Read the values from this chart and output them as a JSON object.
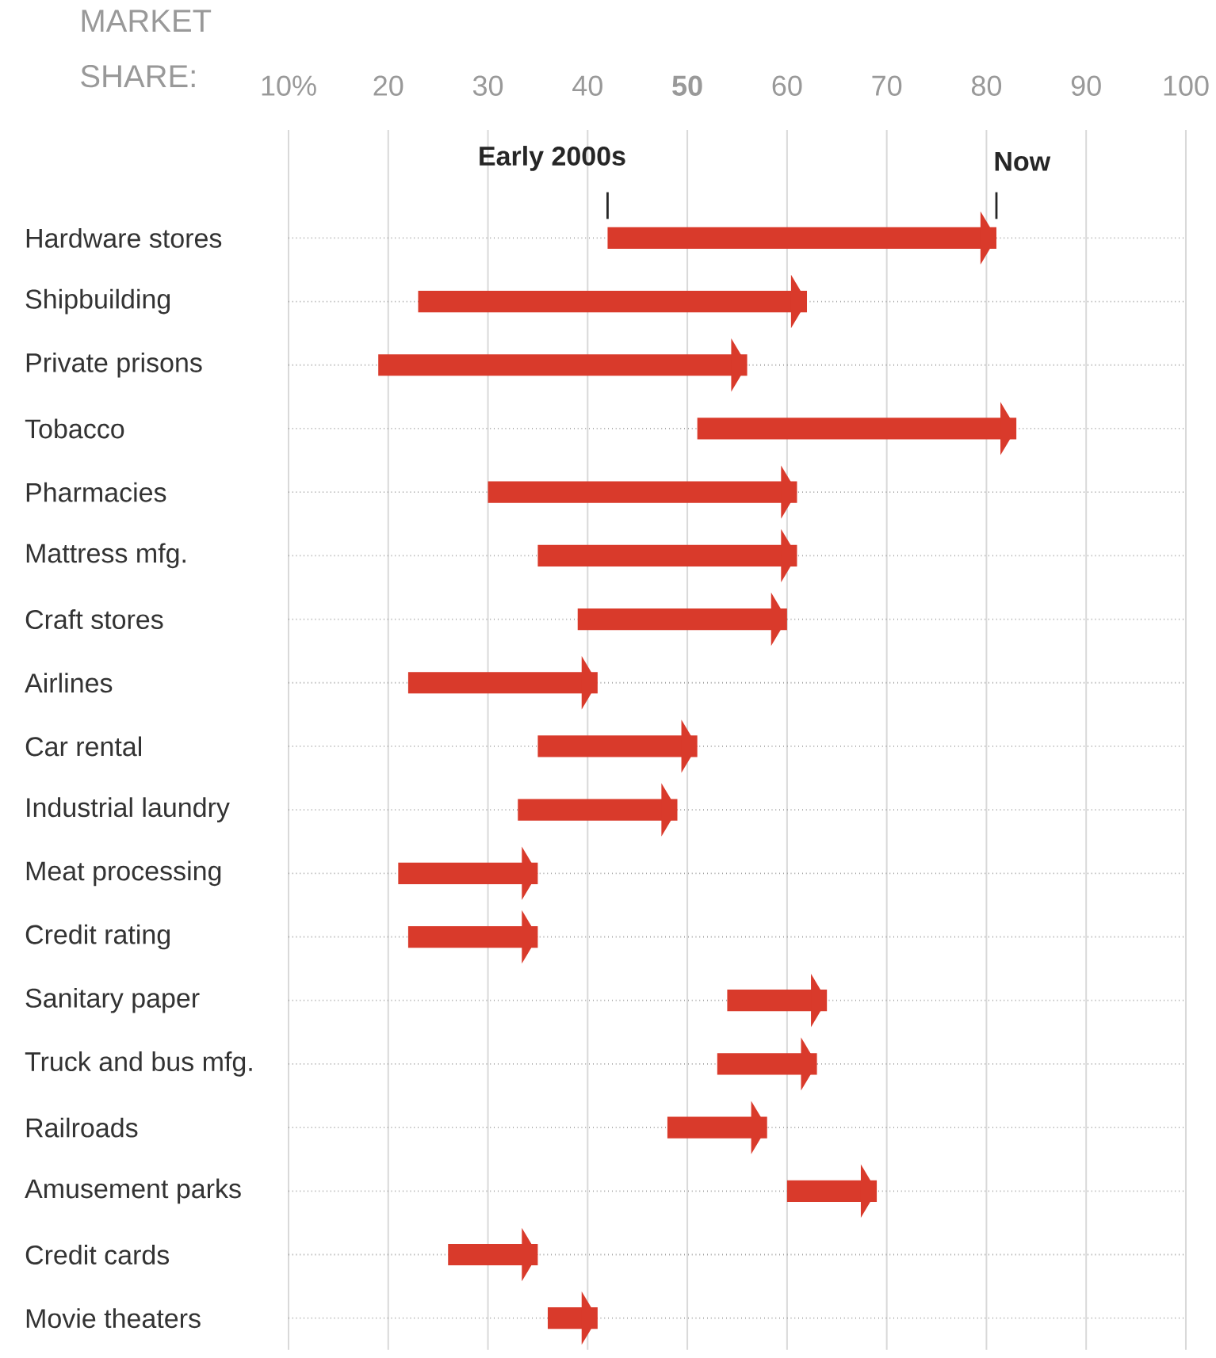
{
  "chart_data": {
    "type": "bar",
    "orientation": "horizontal",
    "xlabel": "MARKET SHARE:",
    "categories": [
      "Hardware stores",
      "Shipbuilding",
      "Private prisons",
      "Tobacco",
      "Pharmacies",
      "Mattress mfg.",
      "Craft stores",
      "Airlines",
      "Car rental",
      "Industrial laundry",
      "Meat processing",
      "Credit rating",
      "Sanitary paper",
      "Truck and bus mfg.",
      "Railroads",
      "Amusement parks",
      "Credit cards",
      "Movie theaters"
    ],
    "base": [
      42,
      23,
      19,
      51,
      30,
      35,
      39,
      22,
      35,
      33,
      21,
      22,
      54,
      53,
      48,
      60,
      26,
      36
    ],
    "values": [
      39,
      39,
      37,
      32,
      31,
      26,
      21,
      19,
      16,
      16,
      14,
      13,
      10,
      10,
      10,
      9,
      9,
      5
    ],
    "color": "#d93a2b",
    "xlim": [
      10,
      100
    ],
    "xticks": [
      {
        "value": 10,
        "label": "10%"
      },
      20,
      30,
      40,
      {
        "value": 50,
        "label": "**50**"
      },
      60,
      70,
      80,
      90,
      100
    ],
    "grid": true,
    "annotations": [
      "Early 2000s",
      "Now"
    ]
  }
}
